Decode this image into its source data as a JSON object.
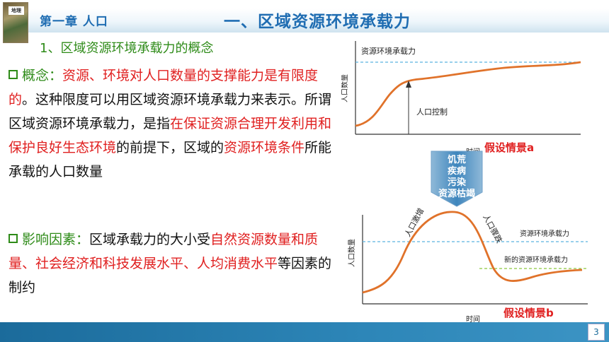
{
  "header": {
    "chapter": "第一章   人口",
    "title": "一、区域资源环境承载力",
    "thumbnail_tag": "地理"
  },
  "section": {
    "subtitle": "1、区域资源环境承载力的概念"
  },
  "concept": {
    "label": "概念：",
    "r1": "资源、环境对人口数量的支撑能力是有限度的",
    "t1": "。这种限度可以用区域资源环境承载力来表示。所谓区域资源环境承载力，是指",
    "r2": "在保证资源合理开发利用和保护良好生态环境",
    "t2": "的前提下，区域的",
    "r3": "资源环境条件",
    "t3": "所能承载的人口数量"
  },
  "factors": {
    "label": "影响因素：",
    "t1": "区域承载力的大小受",
    "r1": "自然资源数量和质量、社会经济和科技发展水平、人均消费水平",
    "t2": "等因素的制约"
  },
  "chart_data": [
    {
      "type": "line",
      "title": "假设情景a",
      "ylabel": "人口数量",
      "xlabel": "时间",
      "capacity_label": "资源环境承载力",
      "annotation": "人口控制",
      "series": [
        {
          "name": "",
          "values": []
        }
      ]
    },
    {
      "type": "line",
      "title": "假设情景b",
      "ylabel": "人口数量",
      "xlabel": "时间",
      "capacity_label": "资源环境承载力",
      "new_capacity_label": "新的资源环境承载力",
      "rise_label": "人口激增",
      "fall_label": "人口骤跌",
      "series": [
        {
          "name": "",
          "values": []
        }
      ]
    }
  ],
  "causes": [
    "饥荒",
    "疾病",
    "污染",
    "资源枯竭"
  ],
  "footer": {
    "page": "3"
  },
  "colors": {
    "title_blue": "#1f6db2",
    "green": "#2e8b18",
    "red": "#e02020",
    "curve": "#e0722a",
    "dash_blue": "#5bb5e0",
    "dash_green": "#8cc63f",
    "footer_blue": "#2d86b8"
  }
}
